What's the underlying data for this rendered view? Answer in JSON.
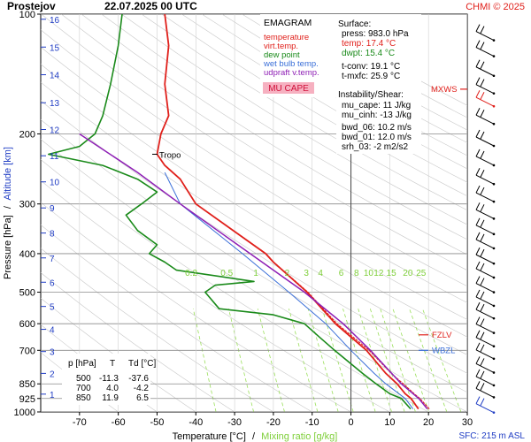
{
  "header": {
    "station": "Prostejov",
    "datetime": "22.07.2025 00 UTC",
    "credit": "CHMI © 2025"
  },
  "legend": {
    "title": "EMAGRAM",
    "items": [
      {
        "label": "temperature",
        "color": "#e0201b"
      },
      {
        "label": "virt.temp.",
        "color": "#e0201b"
      },
      {
        "label": "dew point",
        "color": "#1a8a1a"
      },
      {
        "label": "wet bulb temp.",
        "color": "#3a6fd8"
      },
      {
        "label": "udpraft v.temp.",
        "color": "#8e1fb5"
      }
    ],
    "badge": "MU CAPE",
    "badge_bg": "#f6b0c0",
    "badge_color": "#d0103a"
  },
  "surface": {
    "heading": "Surface:",
    "lines": [
      "press: 983.0 hPa",
      "temp: 17.4 °C",
      "dwpt: 15.4 °C"
    ],
    "line_colors": [
      "#000000",
      "#e0201b",
      "#1a8a1a"
    ],
    "conv": [
      "t-conv: 19.1 °C",
      "t-mxfc: 25.9 °C"
    ]
  },
  "instability": {
    "heading": "Instability/Shear:",
    "lines": [
      "mu_cape: 11 J/kg",
      "mu_cinh: -13 J/kg",
      "",
      "bwd_06: 10.2 m/s",
      "bwd_01: 12.0 m/s",
      "srh_03: -2 m2/s2"
    ]
  },
  "table": {
    "headers": [
      "p [hPa]",
      "T",
      "Td [°C]"
    ],
    "rows": [
      [
        "500",
        "-11.3",
        "-37.6"
      ],
      [
        "700",
        "4.0",
        "-4.2"
      ],
      [
        "850",
        "11.9",
        "6.5"
      ]
    ]
  },
  "markers": {
    "mxws": "MXWS",
    "fzlv": "FZLV",
    "wbzl": "WBZL",
    "tropo": "Tropo",
    "mxws_color": "#e0201b",
    "fzlv_color": "#e0201b",
    "wbzl_color": "#3a6fd8"
  },
  "footer": {
    "xlabel_a": "Temperature [°C]",
    "xlabel_sep": "/",
    "xlabel_b": "Mixing ratio [g/kg]",
    "sfc": "SFC: 215 m ASL"
  },
  "yaxis": {
    "label_a": "Pressure [hPa]",
    "label_sep": "/",
    "label_b": "Altitude [km]"
  },
  "chart_data": {
    "type": "line",
    "title": "EMAGRAM",
    "xlabel": "Temperature [°C] / Mixing ratio [g/kg]",
    "ylabel": "Pressure [hPa] / Altitude [km]",
    "xlim": [
      -80,
      30
    ],
    "ylim": [
      1000,
      100
    ],
    "y_scale": "log",
    "grid": true,
    "x_ticks": [
      -70,
      -60,
      -50,
      -40,
      -30,
      -20,
      -10,
      0,
      10,
      20,
      30
    ],
    "p_ticks": [
      100,
      200,
      300,
      400,
      500,
      600,
      700,
      850,
      925,
      1000
    ],
    "alt_ticks_km": [
      1,
      2,
      3,
      4,
      5,
      6,
      7,
      8,
      9,
      10,
      11,
      12,
      13,
      14,
      15,
      16
    ],
    "alt_tick_p": [
      902,
      800,
      705,
      620,
      543,
      472,
      410,
      355,
      307,
      264,
      227,
      195,
      167,
      142,
      121,
      103
    ],
    "mixing_ratio_labels": [
      "0.2",
      "0.5",
      "1",
      "2",
      "3",
      "4",
      "6",
      "8",
      "10",
      "12",
      "15",
      "20",
      "25"
    ],
    "mixing_ratio_values": [
      0.2,
      0.5,
      1,
      2,
      3,
      4,
      6,
      8,
      10,
      12,
      15,
      20,
      25
    ],
    "series": [
      {
        "name": "temperature",
        "color": "#e0201b",
        "p": [
          983,
          925,
          900,
          850,
          800,
          700,
          600,
          500,
          420,
          400,
          300,
          260,
          240,
          225,
          200,
          180,
          150,
          120,
          100
        ],
        "t": [
          17.4,
          15.5,
          14,
          11.9,
          9,
          4,
          -4,
          -11.3,
          -20,
          -22,
          -40,
          -44,
          -48,
          -50,
          -49,
          -47,
          -48,
          -47,
          -48
        ]
      },
      {
        "name": "virt.temp.",
        "color": "#e0201b",
        "p": [
          983,
          925,
          900,
          850,
          800,
          700,
          600,
          500,
          420,
          400,
          300,
          260,
          240,
          225
        ],
        "t": [
          20.2,
          17.8,
          16.3,
          13.5,
          10.4,
          4.7,
          -3.6,
          -11.1,
          -19.9,
          -21.9,
          -40,
          -44,
          -48,
          -50
        ]
      },
      {
        "name": "dew point",
        "color": "#1a8a1a",
        "p": [
          983,
          925,
          900,
          850,
          800,
          700,
          650,
          600,
          570,
          550,
          500,
          480,
          470,
          440,
          420,
          400,
          380,
          350,
          320,
          300,
          280,
          260,
          240,
          225,
          215,
          200,
          180,
          150,
          120,
          100
        ],
        "t": [
          15.4,
          13,
          10,
          6.5,
          3,
          -4.2,
          -8,
          -12,
          -20,
          -34,
          -37.6,
          -35,
          -25,
          -45,
          -48,
          -52,
          -50,
          -55,
          -58,
          -54,
          -50,
          -55,
          -64,
          -78,
          -70,
          -66,
          -64,
          -62,
          -60,
          -59
        ]
      },
      {
        "name": "wet bulb temp.",
        "color": "#3a6fd8",
        "p": [
          983,
          925,
          850,
          800,
          700,
          600,
          500,
          400,
          300,
          250
        ],
        "t": [
          16,
          14,
          9,
          6,
          0,
          -6.5,
          -16,
          -28,
          -44,
          -48
        ]
      },
      {
        "name": "udpraft v.temp.",
        "color": "#8e1fb5",
        "p": [
          983,
          925,
          850,
          800,
          700,
          600,
          500,
          400,
          300,
          250,
          200
        ],
        "t": [
          19.7,
          17.5,
          13,
          10.5,
          5,
          -2,
          -12,
          -26,
          -44,
          -55,
          -70
        ]
      }
    ],
    "annotations": {
      "mxws_p": 165,
      "fzlv_p": 640,
      "wbzl_p": 700,
      "tropo_p": 225
    },
    "wind_barbs_p": [
      114,
      125,
      140,
      155,
      167,
      185,
      210,
      235,
      262,
      290,
      320,
      350,
      380,
      415,
      450,
      490,
      530,
      570,
      620,
      670,
      720,
      780,
      840,
      900,
      983
    ]
  }
}
